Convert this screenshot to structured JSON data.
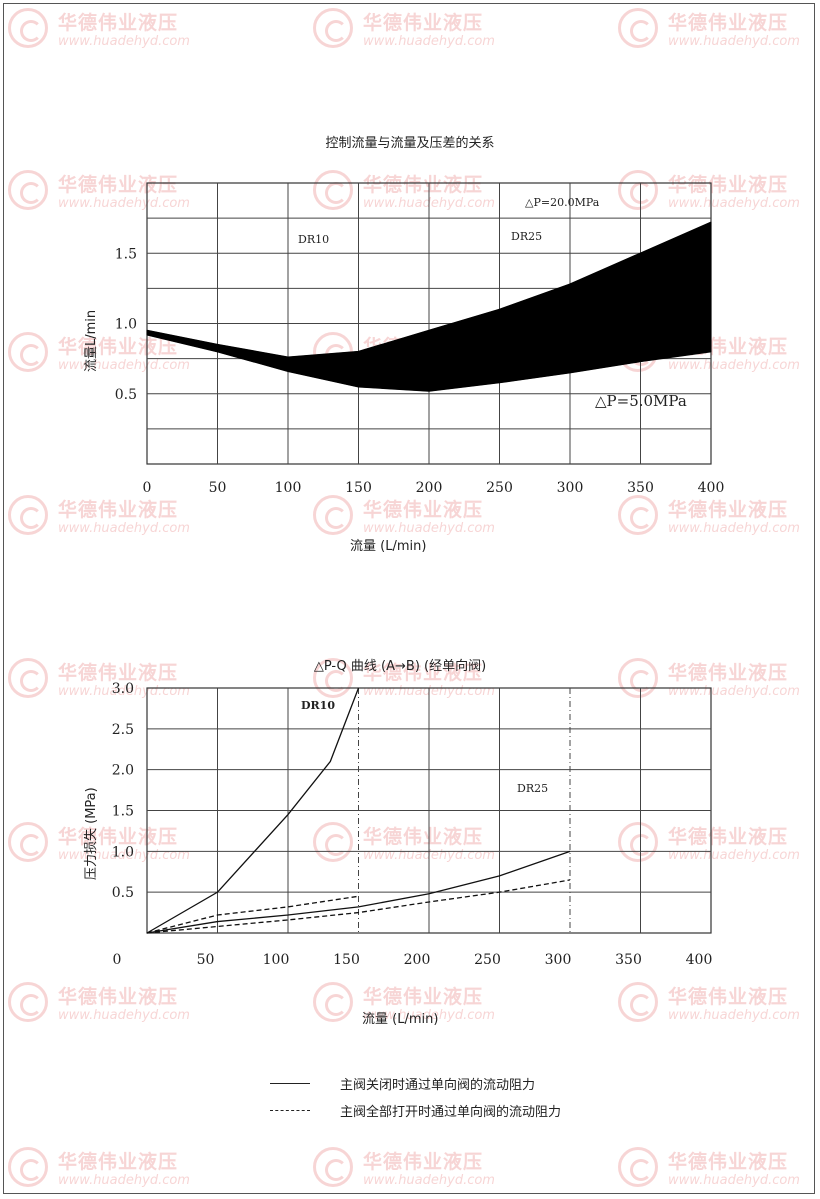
{
  "watermark": {
    "name": "华德伟业液压",
    "url": "www.huadehyd.com"
  },
  "chart_data": [
    {
      "type": "area",
      "title": "控制流量与流量及压差的关系",
      "xlabel": "流量 (L/min)",
      "ylabel": "流量L/min",
      "xlim": [
        0,
        400
      ],
      "ylim": [
        0,
        2.0
      ],
      "x_ticks": [
        "0",
        "50",
        "100",
        "150",
        "200",
        "250",
        "300",
        "350",
        "400"
      ],
      "y_ticks": [
        "0.5",
        "1.0",
        "1.5"
      ],
      "grid": true,
      "series": [
        {
          "name": "△P=20.0MPa",
          "x": [
            0,
            50,
            100,
            150,
            200,
            250,
            300,
            350,
            400
          ],
          "values": [
            0.95,
            0.85,
            0.76,
            0.8,
            0.95,
            1.1,
            1.28,
            1.5,
            1.72
          ]
        },
        {
          "name": "△P=5.0MPa",
          "x": [
            0,
            50,
            100,
            150,
            200,
            250,
            300,
            350,
            400
          ],
          "values": [
            0.92,
            0.8,
            0.66,
            0.55,
            0.52,
            0.58,
            0.65,
            0.73,
            0.8
          ]
        }
      ],
      "annotations": [
        "DR10",
        "DR25",
        "△P=20.0MPa",
        "△P=5.0MPa"
      ]
    },
    {
      "type": "line",
      "title": "△P-Q 曲线 (A→B) (经单向阀)",
      "xlabel": "流量 (L/min)",
      "ylabel": "压力损失 (MPa)",
      "xlim": [
        0,
        400
      ],
      "ylim": [
        0,
        3.0
      ],
      "x_ticks": [
        "0",
        "50",
        "100",
        "150",
        "200",
        "250",
        "300",
        "350",
        "400"
      ],
      "y_ticks": [
        "0.5",
        "1.0",
        "1.5",
        "2.0",
        "2.5",
        "3.0"
      ],
      "grid": true,
      "series": [
        {
          "style": "solid",
          "x": [
            0,
            50,
            100,
            130,
            150
          ],
          "values": [
            0,
            0.5,
            1.45,
            2.1,
            3.0
          ]
        },
        {
          "style": "dashed",
          "x": [
            0,
            50,
            100,
            150
          ],
          "values": [
            0,
            0.22,
            0.32,
            0.45
          ]
        },
        {
          "style": "solid",
          "x": [
            0,
            50,
            100,
            150,
            200,
            250,
            300
          ],
          "values": [
            0,
            0.14,
            0.22,
            0.32,
            0.48,
            0.7,
            1.0
          ]
        },
        {
          "style": "dashed",
          "x": [
            0,
            50,
            100,
            150,
            200,
            250,
            300
          ],
          "values": [
            0,
            0.08,
            0.16,
            0.25,
            0.38,
            0.5,
            0.65
          ]
        }
      ],
      "annotations": [
        "DR10",
        "DR25"
      ]
    }
  ],
  "legend": [
    {
      "style": "solid",
      "label": "主阀关闭时通过单向阀的流动阻力"
    },
    {
      "style": "dashed",
      "label": "主阀全部打开时通过单向阀的流动阻力"
    }
  ]
}
